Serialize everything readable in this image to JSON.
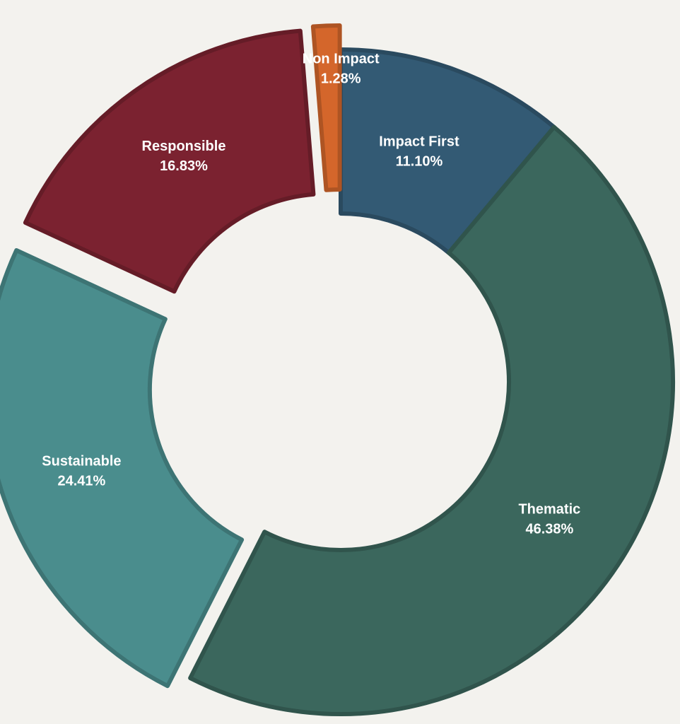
{
  "chart_data": {
    "type": "pie",
    "title": "",
    "categories": [
      "Impact First",
      "Thematic",
      "Sustainable",
      "Responsible",
      "Non Impact"
    ],
    "values": [
      11.1,
      46.38,
      24.41,
      16.83,
      1.28
    ],
    "labels": [
      "11.10%",
      "46.38%",
      "24.41%",
      "16.83%",
      "1.28%"
    ],
    "colors": [
      "#335a74",
      "#3b675d",
      "#4a8d8d",
      "#7b2230",
      "#d4662b"
    ],
    "exploded": [
      "Sustainable",
      "Responsible",
      "Non Impact"
    ],
    "legend": "none",
    "donut": true
  }
}
